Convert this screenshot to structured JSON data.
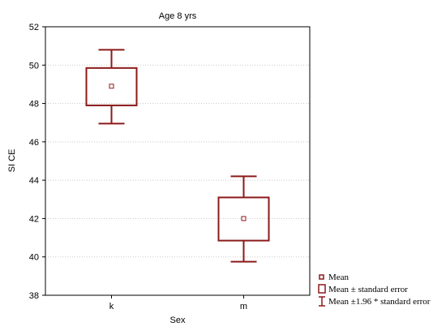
{
  "chart_data": {
    "type": "box",
    "title": "Age 8 yrs",
    "xlabel": "Sex",
    "ylabel": "SI CE",
    "ylim": [
      38,
      52
    ],
    "yticks": [
      38,
      40,
      42,
      44,
      46,
      48,
      50,
      52
    ],
    "grid": "horizontal-dotted",
    "categories": [
      "k",
      "m"
    ],
    "series": [
      {
        "category": "k",
        "mean": 48.9,
        "se_low": 47.9,
        "se_high": 49.85,
        "ci_low": 46.95,
        "ci_high": 50.8
      },
      {
        "category": "m",
        "mean": 42.0,
        "se_low": 40.85,
        "se_high": 43.1,
        "ci_low": 39.75,
        "ci_high": 44.2
      }
    ],
    "legend": {
      "placement": "bottom-right",
      "items": [
        {
          "symbol": "mean-point",
          "label": "Mean"
        },
        {
          "symbol": "box",
          "label": "Mean ± standard error"
        },
        {
          "symbol": "whisker",
          "label": "Mean ±1.96 * standard error"
        }
      ]
    },
    "colors": {
      "box": "#8b1a1a",
      "frame": "#000000",
      "grid": "#c8c8c8"
    }
  }
}
